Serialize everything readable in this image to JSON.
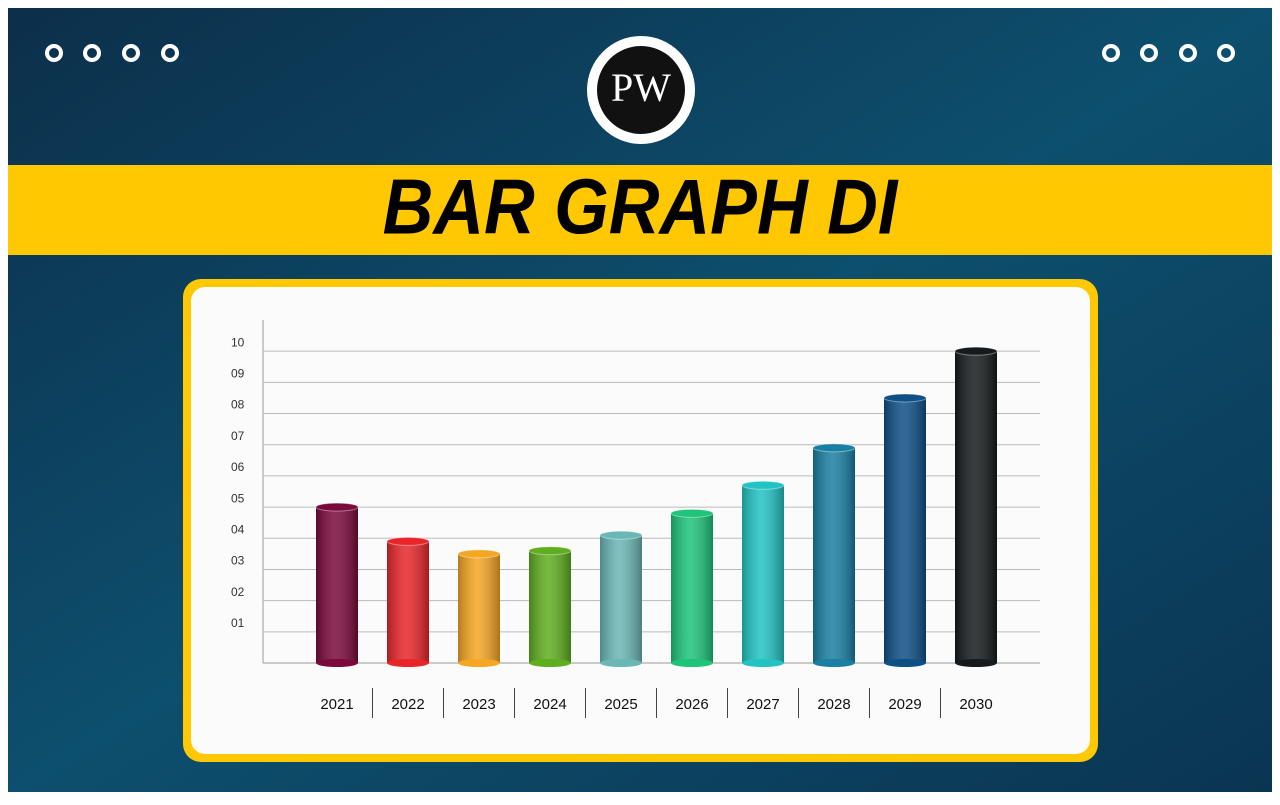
{
  "logo": "PW",
  "chart_data": {
    "type": "bar",
    "title": "BAR GRAPH DI",
    "categories": [
      "2021",
      "2022",
      "2023",
      "2024",
      "2025",
      "2026",
      "2027",
      "2028",
      "2029",
      "2030"
    ],
    "values": [
      5.0,
      3.9,
      3.5,
      3.6,
      4.1,
      4.8,
      5.7,
      6.9,
      8.5,
      10.0
    ],
    "colors": [
      "#7a0a3a",
      "#e8262a",
      "#f5a623",
      "#5fae1f",
      "#6ab7b5",
      "#1ec47a",
      "#22c3c3",
      "#1a7fa3",
      "#0e4f86",
      "#151a1c"
    ],
    "ylim": [
      0,
      11
    ],
    "yticks": [
      {
        "value": 1,
        "label": "01"
      },
      {
        "value": 2,
        "label": "02"
      },
      {
        "value": 3,
        "label": "03"
      },
      {
        "value": 4,
        "label": "04"
      },
      {
        "value": 5,
        "label": "05"
      },
      {
        "value": 6,
        "label": "06"
      },
      {
        "value": 7,
        "label": "07"
      },
      {
        "value": 8,
        "label": "08"
      },
      {
        "value": 9,
        "label": "09"
      },
      10
    ],
    "grid": true
  }
}
